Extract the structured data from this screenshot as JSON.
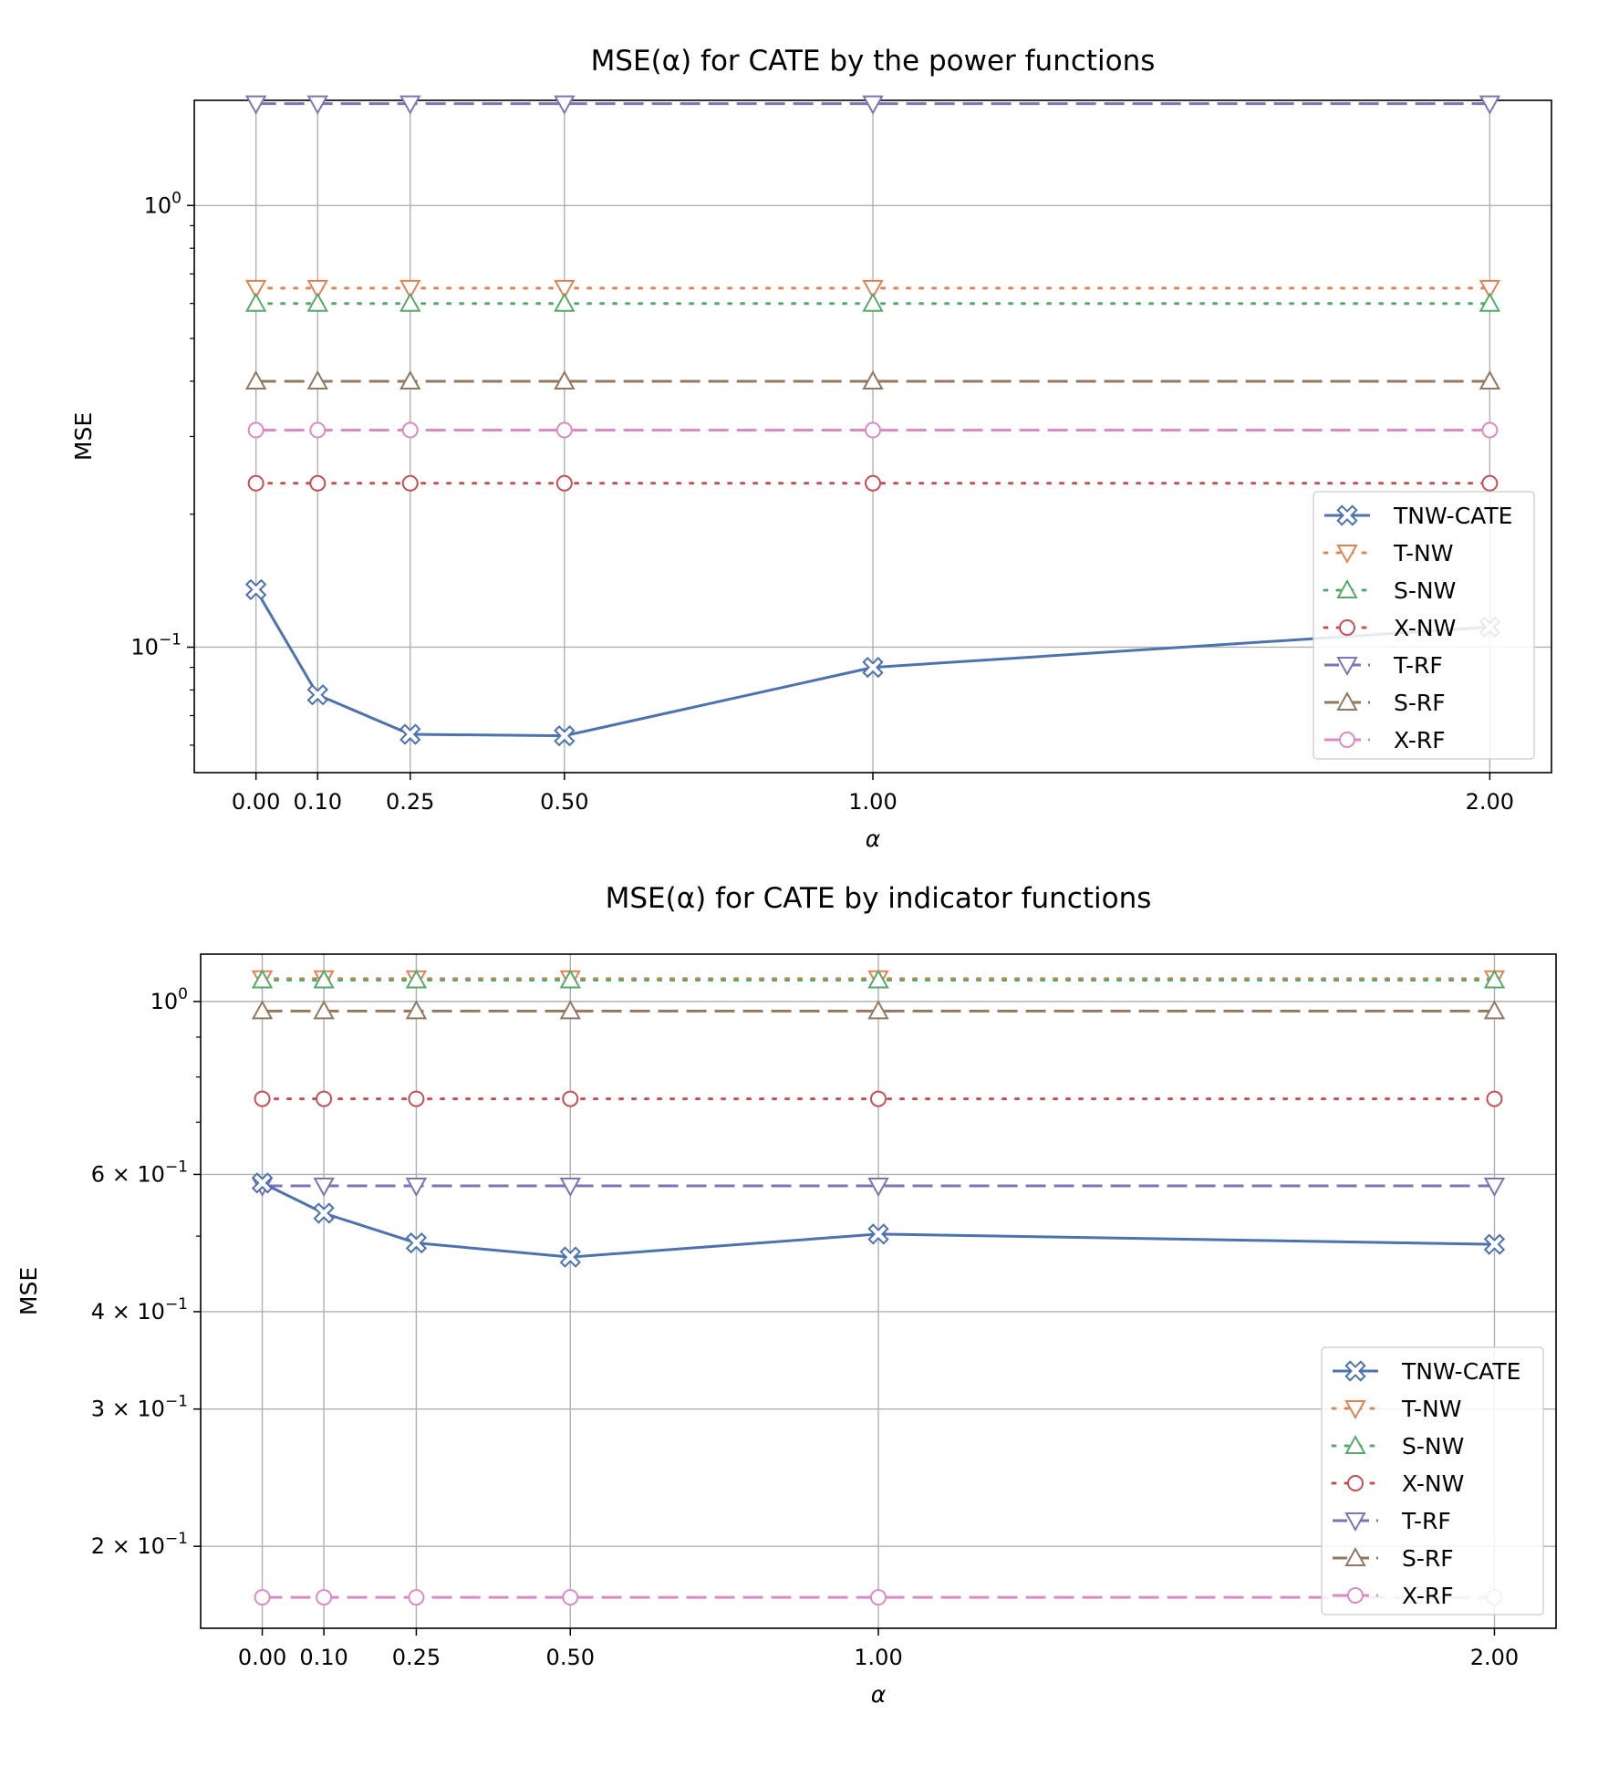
{
  "figure_type": "two stacked line charts (log-scale y axis)",
  "chart_data": [
    {
      "type": "line",
      "title": "MSE(α) for CATE by the power functions",
      "xlabel": "α",
      "ylabel": "MSE",
      "x": [
        0.0,
        0.1,
        0.25,
        0.5,
        1.0,
        2.0
      ],
      "x_tick_labels": [
        "0.00",
        "0.10",
        "0.25",
        "0.50",
        "1.00",
        "2.00"
      ],
      "xlim": [
        -0.1,
        2.1
      ],
      "yscale": "log",
      "ylim": [
        0.052,
        1.73
      ],
      "y_major_ticks": [
        {
          "value": 1.0,
          "base": "10",
          "exp": "0"
        },
        {
          "value": 0.1,
          "base": "10",
          "exp": "−1"
        }
      ],
      "grid": true,
      "legend_position": "lower right",
      "series": [
        {
          "name": "TNW-CATE",
          "color": "#4C72B0",
          "linestyle": "solid",
          "marker": "X",
          "values": [
            0.135,
            0.078,
            0.0635,
            0.063,
            0.09,
            0.111
          ]
        },
        {
          "name": "T-NW",
          "color": "#DD8452",
          "linestyle": "dotted",
          "marker": "v",
          "values": [
            0.65,
            0.65,
            0.65,
            0.65,
            0.65,
            0.65
          ]
        },
        {
          "name": "S-NW",
          "color": "#55A868",
          "linestyle": "dotted",
          "marker": "^",
          "values": [
            0.6,
            0.6,
            0.6,
            0.6,
            0.6,
            0.6
          ]
        },
        {
          "name": "X-NW",
          "color": "#C44E52",
          "linestyle": "dotted",
          "marker": "o",
          "values": [
            0.235,
            0.235,
            0.235,
            0.235,
            0.235,
            0.235
          ]
        },
        {
          "name": "T-RF",
          "color": "#8172B3",
          "linestyle": "dashed",
          "marker": "v",
          "values": [
            1.7,
            1.7,
            1.7,
            1.7,
            1.7,
            1.7
          ]
        },
        {
          "name": "S-RF",
          "color": "#937860",
          "linestyle": "dashed",
          "marker": "^",
          "values": [
            0.4,
            0.4,
            0.4,
            0.4,
            0.4,
            0.4
          ]
        },
        {
          "name": "X-RF",
          "color": "#DA8BC3",
          "linestyle": "dashed",
          "marker": "o",
          "values": [
            0.31,
            0.31,
            0.31,
            0.31,
            0.31,
            0.31
          ]
        }
      ]
    },
    {
      "type": "line",
      "title": "MSE(α) for CATE by indicator functions",
      "xlabel": "α",
      "ylabel": "MSE",
      "x": [
        0.0,
        0.1,
        0.25,
        0.5,
        1.0,
        2.0
      ],
      "x_tick_labels": [
        "0.00",
        "0.10",
        "0.25",
        "0.50",
        "1.00",
        "2.00"
      ],
      "xlim": [
        -0.1,
        2.1
      ],
      "yscale": "log",
      "ylim": [
        0.157,
        1.15
      ],
      "y_major_ticks": [
        {
          "value": 1.0,
          "base": "10",
          "exp": "0"
        },
        {
          "value": 0.6,
          "base": "6 × 10",
          "exp": "−1"
        },
        {
          "value": 0.4,
          "base": "4 × 10",
          "exp": "−1"
        },
        {
          "value": 0.3,
          "base": "3 × 10",
          "exp": "−1"
        },
        {
          "value": 0.2,
          "base": "2 × 10",
          "exp": "−1"
        }
      ],
      "grid": true,
      "legend_position": "lower right",
      "series": [
        {
          "name": "TNW-CATE",
          "color": "#4C72B0",
          "linestyle": "solid",
          "marker": "X",
          "values": [
            0.585,
            0.535,
            0.49,
            0.47,
            0.503,
            0.488
          ]
        },
        {
          "name": "T-NW",
          "color": "#DD8452",
          "linestyle": "dotted",
          "marker": "v",
          "values": [
            1.07,
            1.07,
            1.07,
            1.07,
            1.07,
            1.07
          ]
        },
        {
          "name": "S-NW",
          "color": "#55A868",
          "linestyle": "dotted",
          "marker": "^",
          "values": [
            1.065,
            1.065,
            1.065,
            1.065,
            1.065,
            1.065
          ]
        },
        {
          "name": "X-NW",
          "color": "#C44E52",
          "linestyle": "dotted",
          "marker": "o",
          "values": [
            0.75,
            0.75,
            0.75,
            0.75,
            0.75,
            0.75
          ]
        },
        {
          "name": "T-RF",
          "color": "#8172B3",
          "linestyle": "dashed",
          "marker": "v",
          "values": [
            0.58,
            0.58,
            0.58,
            0.58,
            0.58,
            0.58
          ]
        },
        {
          "name": "S-RF",
          "color": "#937860",
          "linestyle": "dashed",
          "marker": "^",
          "values": [
            0.972,
            0.972,
            0.972,
            0.972,
            0.972,
            0.972
          ]
        },
        {
          "name": "X-RF",
          "color": "#DA8BC3",
          "linestyle": "dashed",
          "marker": "o",
          "values": [
            0.172,
            0.172,
            0.172,
            0.172,
            0.172,
            0.172
          ]
        }
      ]
    }
  ]
}
